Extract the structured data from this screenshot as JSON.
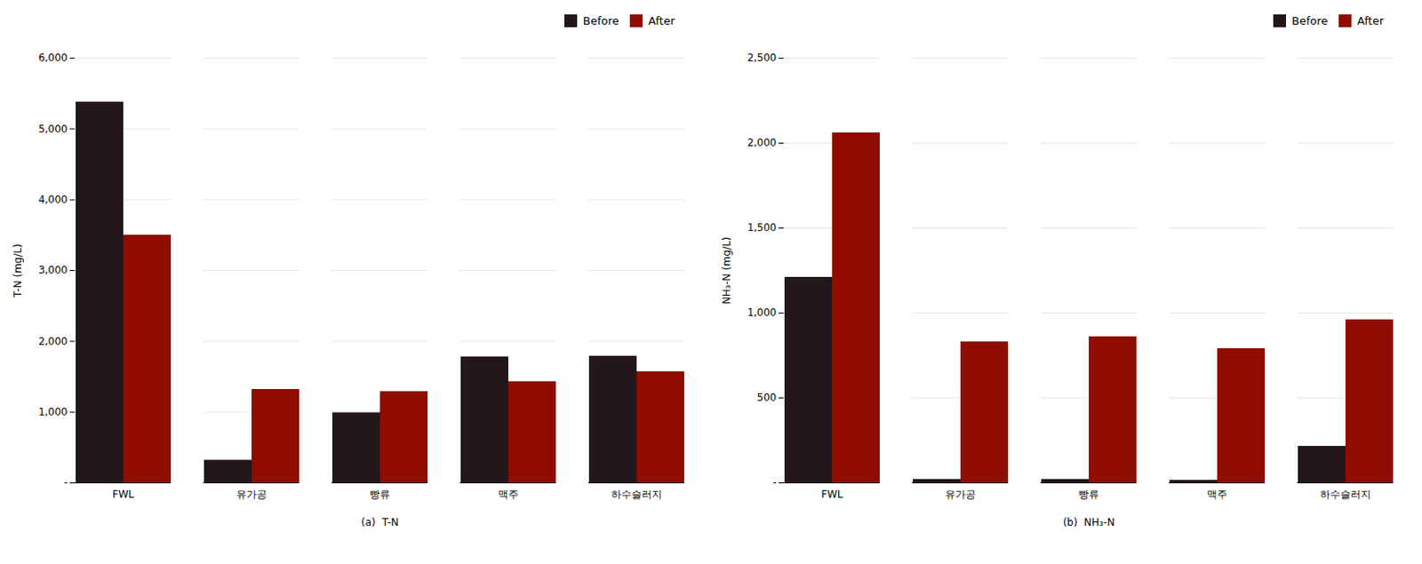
{
  "chart_data": [
    {
      "type": "bar",
      "categories": [
        "FWL",
        "유가공",
        "빵류",
        "맥주",
        "하수슬러지"
      ],
      "series": [
        {
          "name": "Before",
          "values": [
            5380,
            320,
            990,
            1780,
            1790
          ]
        },
        {
          "name": "After",
          "values": [
            3500,
            1320,
            1290,
            1430,
            1570
          ]
        }
      ],
      "xlabel": "(a)  T-N",
      "ylabel": "T-N (mg/L)",
      "ylim": [
        0,
        6000
      ],
      "yticks": [
        {
          "value": 0,
          "label": "-"
        },
        {
          "value": 1000,
          "label": "1,000"
        },
        {
          "value": 2000,
          "label": "2,000"
        },
        {
          "value": 3000,
          "label": "3,000"
        },
        {
          "value": 4000,
          "label": "4,000"
        },
        {
          "value": 5000,
          "label": "5,000"
        },
        {
          "value": 6000,
          "label": "6,000"
        }
      ],
      "grid": true,
      "legend": "upper right"
    },
    {
      "type": "bar",
      "categories": [
        "FWL",
        "유가공",
        "빵류",
        "맥주",
        "하수슬러지"
      ],
      "series": [
        {
          "name": "Before",
          "values": [
            1210,
            20,
            20,
            15,
            215
          ]
        },
        {
          "name": "After",
          "values": [
            2060,
            830,
            860,
            790,
            960
          ]
        }
      ],
      "xlabel": "(b)  NH₃-N",
      "ylabel": "NH₃-N (mg/L)",
      "ylim": [
        0,
        2500
      ],
      "yticks": [
        {
          "value": 0,
          "label": "-"
        },
        500,
        {
          "value": 1000,
          "label": "1,000"
        },
        {
          "value": 1500,
          "label": "1,500"
        },
        {
          "value": 2000,
          "label": "2,000"
        },
        {
          "value": 2500,
          "label": "2,500"
        }
      ],
      "grid": true,
      "legend": "upper right"
    }
  ]
}
